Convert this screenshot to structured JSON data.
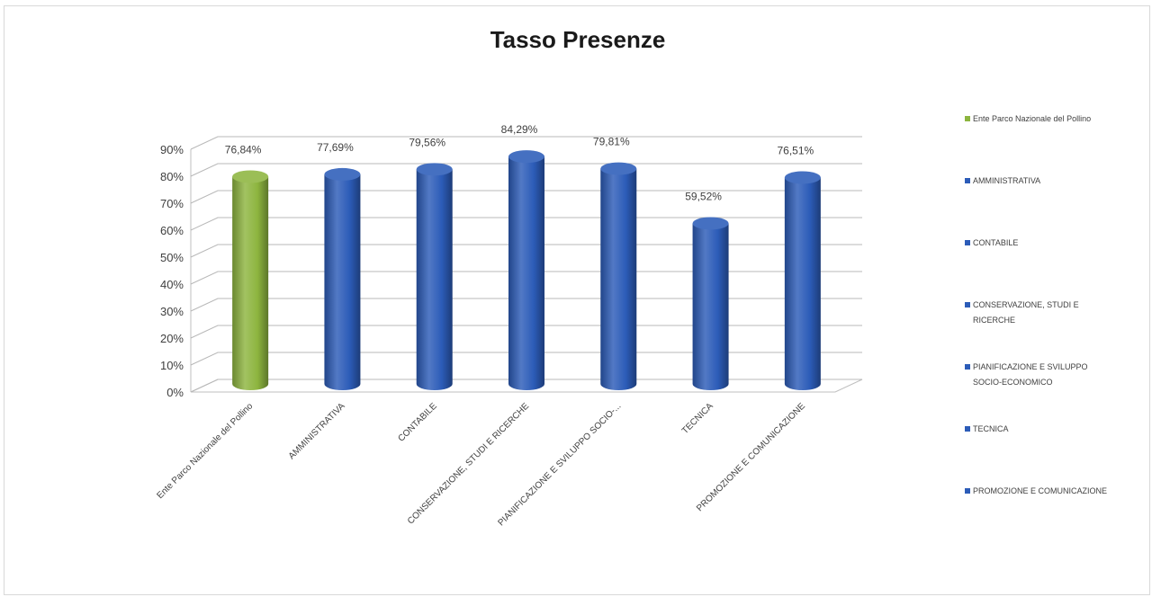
{
  "chart_data": {
    "type": "bar",
    "title": "Tasso Presenze",
    "categories": [
      "Ente Parco Nazionale del Pollino",
      "AMMINISTRATIVA",
      "CONTABILE",
      "CONSERVAZIONE, STUDI E RICERCHE",
      "PIANIFICAZIONE E SVILUPPO SOCIO-...",
      "TECNICA",
      "PROMOZIONE E COMUNICAZIONE"
    ],
    "values": [
      76.84,
      77.69,
      79.56,
      84.29,
      79.81,
      59.52,
      76.51
    ],
    "data_labels": [
      "76,84%",
      "77,69%",
      "79,56%",
      "84,29%",
      "79,81%",
      "59,52%",
      "76,51%"
    ],
    "ylim": [
      0,
      90
    ],
    "yticks": [
      "0%",
      "10%",
      "20%",
      "30%",
      "40%",
      "50%",
      "60%",
      "70%",
      "80%",
      "90%"
    ],
    "grid": true,
    "style": "3d-cylinder",
    "colors": [
      "#8db53f",
      "#2c5cb8",
      "#2c5cb8",
      "#2c5cb8",
      "#2c5cb8",
      "#2c5cb8",
      "#2c5cb8"
    ],
    "legend": {
      "placement": "right",
      "entries": [
        {
          "lines": [
            "Ente Parco Nazionale del Pollino"
          ],
          "color": "#8db53f"
        },
        {
          "lines": [
            "AMMINISTRATIVA"
          ],
          "color": "#2c5cb8"
        },
        {
          "lines": [
            "CONTABILE"
          ],
          "color": "#2c5cb8"
        },
        {
          "lines": [
            "CONSERVAZIONE, STUDI E",
            "RICERCHE"
          ],
          "color": "#2c5cb8"
        },
        {
          "lines": [
            "PIANIFICAZIONE E SVILUPPO",
            "SOCIO-ECONOMICO"
          ],
          "color": "#2c5cb8"
        },
        {
          "lines": [
            "TECNICA"
          ],
          "color": "#2c5cb8"
        },
        {
          "lines": [
            "PROMOZIONE E COMUNICAZIONE"
          ],
          "color": "#2c5cb8"
        }
      ]
    }
  }
}
